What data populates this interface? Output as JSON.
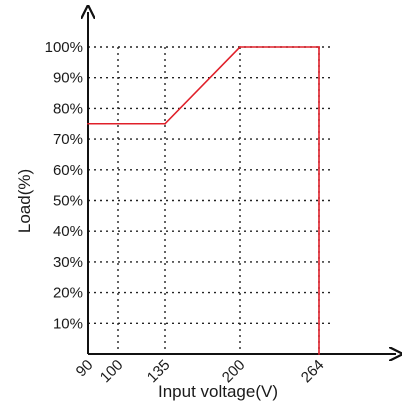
{
  "chart_data": {
    "type": "line",
    "xlabel": "Input voltage(V)",
    "ylabel": "Load(%)",
    "x_ticks": [
      {
        "value": 90,
        "label": "90"
      },
      {
        "value": 100,
        "label": "100"
      },
      {
        "value": 135,
        "label": "135"
      },
      {
        "value": 200,
        "label": "200"
      },
      {
        "value": 264,
        "label": "264"
      }
    ],
    "y_ticks": [
      {
        "value": 10,
        "label": "10%"
      },
      {
        "value": 20,
        "label": "20%"
      },
      {
        "value": 30,
        "label": "30%"
      },
      {
        "value": 40,
        "label": "40%"
      },
      {
        "value": 50,
        "label": "50%"
      },
      {
        "value": 60,
        "label": "60%"
      },
      {
        "value": 70,
        "label": "70%"
      },
      {
        "value": 80,
        "label": "80%"
      },
      {
        "value": 90,
        "label": "90%"
      },
      {
        "value": 100,
        "label": "100%"
      }
    ],
    "ylim": [
      0,
      100
    ],
    "grid": true,
    "series": [
      {
        "x": [
          90,
          135,
          200,
          264,
          264
        ],
        "y": [
          75,
          75,
          100,
          100,
          0
        ],
        "color": "#e0202a"
      }
    ]
  }
}
